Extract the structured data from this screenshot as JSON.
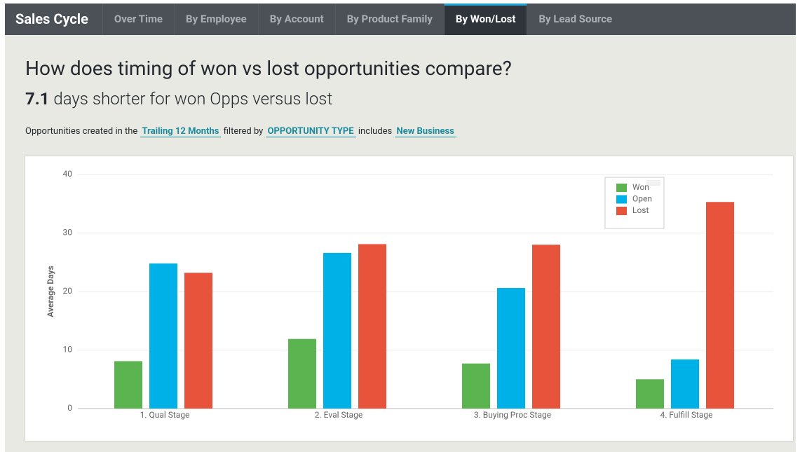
{
  "nav": {
    "title": "Sales Cycle",
    "tabs": [
      {
        "label": "Over Time"
      },
      {
        "label": "By Employee"
      },
      {
        "label": "By Account"
      },
      {
        "label": "By Product Family"
      },
      {
        "label": "By Won/Lost",
        "active": true
      },
      {
        "label": "By Lead Source"
      }
    ]
  },
  "heading": "How does timing of won vs lost opportunities compare?",
  "summary": {
    "value": "7.1",
    "text": "days shorter for won Opps versus lost"
  },
  "filter": [
    {
      "text": "Opportunities created in the"
    },
    {
      "text": "Trailing 12 Months",
      "link": true
    },
    {
      "text": "filtered by"
    },
    {
      "text": "OPPORTUNITY TYPE",
      "link": true
    },
    {
      "text": "includes"
    },
    {
      "text": "New Business",
      "link": true
    }
  ],
  "chart_data": {
    "type": "bar",
    "y_label": "Average Days",
    "categories": [
      "1. Qual Stage",
      "2. Eval Stage",
      "3. Buying Proc Stage",
      "4. Fulfill Stage"
    ],
    "series": [
      {
        "name": "Won",
        "color": "#5cb450",
        "values": [
          8.1,
          11.9,
          7.7,
          5.0
        ]
      },
      {
        "name": "Open",
        "color": "#00b1e8",
        "values": [
          24.8,
          26.6,
          20.6,
          8.4
        ]
      },
      {
        "name": "Lost",
        "color": "#e8533b",
        "values": [
          23.2,
          28.1,
          28.0,
          35.3
        ]
      }
    ],
    "ylim": [
      0,
      40
    ],
    "yticks": [
      0,
      10,
      20,
      30,
      40
    ],
    "grid": true,
    "legend": "top-right"
  }
}
